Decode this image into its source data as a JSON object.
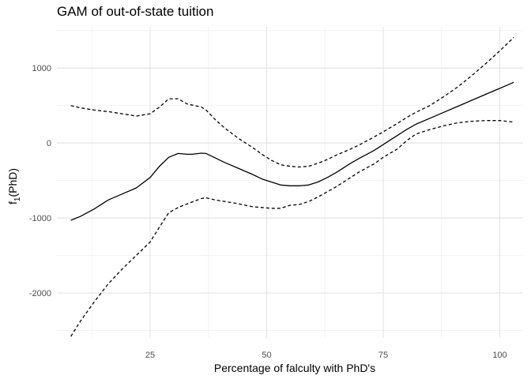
{
  "chart_data": {
    "type": "line",
    "title": "GAM of out-of-state tuition",
    "xlabel": "Percentage of falculty with PhD's",
    "ylabel": {
      "base": "f",
      "sub": "1",
      "arg": "(PhD)"
    },
    "xlim": [
      5,
      105
    ],
    "ylim": [
      -2600,
      1550
    ],
    "x_ticks": [
      25,
      50,
      75,
      100
    ],
    "x_minor_ticks": [
      12.5,
      37.5,
      62.5,
      87.5
    ],
    "y_ticks": [
      -2000,
      -1000,
      0,
      1000
    ],
    "y_minor_ticks": [
      -2500,
      -1500,
      -500,
      500,
      1500
    ],
    "grid": true,
    "series": [
      {
        "role": "fit",
        "style": "solid",
        "points": [
          [
            8,
            -1030
          ],
          [
            10,
            -980
          ],
          [
            13,
            -880
          ],
          [
            16,
            -760
          ],
          [
            19,
            -680
          ],
          [
            22,
            -600
          ],
          [
            25,
            -460
          ],
          [
            27,
            -310
          ],
          [
            29,
            -190
          ],
          [
            31,
            -140
          ],
          [
            33,
            -150
          ],
          [
            34,
            -150
          ],
          [
            36,
            -135
          ],
          [
            37,
            -140
          ],
          [
            39,
            -200
          ],
          [
            41,
            -260
          ],
          [
            44,
            -340
          ],
          [
            47,
            -420
          ],
          [
            49,
            -480
          ],
          [
            51,
            -520
          ],
          [
            53,
            -560
          ],
          [
            55,
            -570
          ],
          [
            57,
            -570
          ],
          [
            59,
            -560
          ],
          [
            61,
            -520
          ],
          [
            63,
            -460
          ],
          [
            65,
            -390
          ],
          [
            68,
            -270
          ],
          [
            70,
            -200
          ],
          [
            73,
            -100
          ],
          [
            75,
            -20
          ],
          [
            78,
            100
          ],
          [
            80,
            180
          ],
          [
            82,
            250
          ],
          [
            85,
            330
          ],
          [
            88,
            410
          ],
          [
            91,
            490
          ],
          [
            94,
            570
          ],
          [
            97,
            650
          ],
          [
            100,
            730
          ],
          [
            103,
            810
          ]
        ]
      },
      {
        "role": "upper",
        "style": "dashed",
        "points": [
          [
            8,
            500
          ],
          [
            10,
            470
          ],
          [
            13,
            440
          ],
          [
            16,
            420
          ],
          [
            19,
            390
          ],
          [
            22,
            360
          ],
          [
            25,
            390
          ],
          [
            27,
            480
          ],
          [
            29,
            590
          ],
          [
            31,
            590
          ],
          [
            33,
            520
          ],
          [
            36,
            480
          ],
          [
            37,
            440
          ],
          [
            39,
            310
          ],
          [
            41,
            200
          ],
          [
            44,
            60
          ],
          [
            47,
            -60
          ],
          [
            49,
            -150
          ],
          [
            51,
            -230
          ],
          [
            53,
            -290
          ],
          [
            55,
            -310
          ],
          [
            57,
            -320
          ],
          [
            59,
            -310
          ],
          [
            61,
            -270
          ],
          [
            63,
            -220
          ],
          [
            65,
            -160
          ],
          [
            68,
            -80
          ],
          [
            70,
            -20
          ],
          [
            73,
            80
          ],
          [
            75,
            150
          ],
          [
            78,
            260
          ],
          [
            80,
            340
          ],
          [
            82,
            410
          ],
          [
            85,
            500
          ],
          [
            88,
            620
          ],
          [
            91,
            750
          ],
          [
            94,
            900
          ],
          [
            97,
            1060
          ],
          [
            100,
            1230
          ],
          [
            103,
            1410
          ]
        ]
      },
      {
        "role": "lower",
        "style": "dashed",
        "points": [
          [
            8,
            -2580
          ],
          [
            10,
            -2380
          ],
          [
            13,
            -2120
          ],
          [
            16,
            -1880
          ],
          [
            19,
            -1680
          ],
          [
            22,
            -1500
          ],
          [
            25,
            -1320
          ],
          [
            27,
            -1120
          ],
          [
            29,
            -930
          ],
          [
            31,
            -860
          ],
          [
            33,
            -810
          ],
          [
            36,
            -740
          ],
          [
            37,
            -730
          ],
          [
            39,
            -760
          ],
          [
            41,
            -780
          ],
          [
            44,
            -810
          ],
          [
            47,
            -850
          ],
          [
            49,
            -860
          ],
          [
            51,
            -870
          ],
          [
            53,
            -870
          ],
          [
            55,
            -830
          ],
          [
            57,
            -820
          ],
          [
            59,
            -780
          ],
          [
            61,
            -720
          ],
          [
            63,
            -650
          ],
          [
            65,
            -580
          ],
          [
            68,
            -460
          ],
          [
            70,
            -380
          ],
          [
            73,
            -280
          ],
          [
            75,
            -190
          ],
          [
            78,
            -80
          ],
          [
            80,
            30
          ],
          [
            82,
            120
          ],
          [
            85,
            180
          ],
          [
            88,
            230
          ],
          [
            91,
            270
          ],
          [
            94,
            290
          ],
          [
            97,
            300
          ],
          [
            100,
            300
          ],
          [
            103,
            280
          ]
        ]
      }
    ]
  }
}
